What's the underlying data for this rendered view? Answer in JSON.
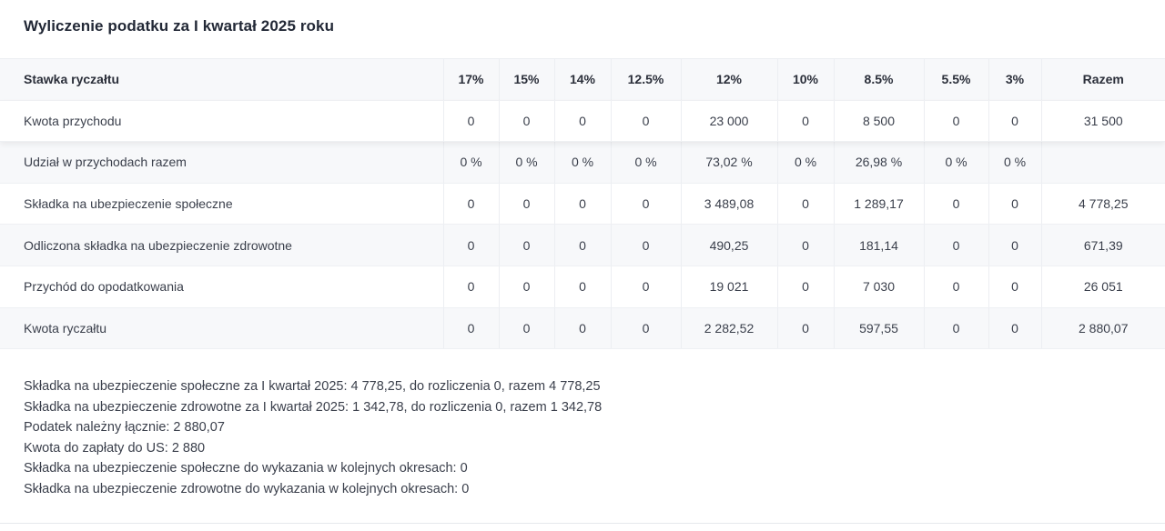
{
  "title": "Wyliczenie podatku za I kwartał 2025 roku",
  "table": {
    "headers": [
      "Stawka ryczałtu",
      "17%",
      "15%",
      "14%",
      "12.5%",
      "12%",
      "10%",
      "8.5%",
      "5.5%",
      "3%",
      "Razem"
    ],
    "rows": [
      {
        "label": "Kwota przychodu",
        "cells": [
          "0",
          "0",
          "0",
          "0",
          "23 000",
          "0",
          "8 500",
          "0",
          "0",
          "31 500"
        ]
      },
      {
        "label": "Udział w przychodach razem",
        "cells": [
          "0 %",
          "0 %",
          "0 %",
          "0 %",
          "73,02 %",
          "0 %",
          "26,98 %",
          "0 %",
          "0 %",
          ""
        ]
      },
      {
        "label": "Składka na ubezpieczenie społeczne",
        "cells": [
          "0",
          "0",
          "0",
          "0",
          "3 489,08",
          "0",
          "1 289,17",
          "0",
          "0",
          "4 778,25"
        ]
      },
      {
        "label": "Odliczona składka na ubezpieczenie zdrowotne",
        "cells": [
          "0",
          "0",
          "0",
          "0",
          "490,25",
          "0",
          "181,14",
          "0",
          "0",
          "671,39"
        ]
      },
      {
        "label": "Przychód do opodatkowania",
        "cells": [
          "0",
          "0",
          "0",
          "0",
          "19 021",
          "0",
          "7 030",
          "0",
          "0",
          "26 051"
        ]
      },
      {
        "label": "Kwota ryczałtu",
        "cells": [
          "0",
          "0",
          "0",
          "0",
          "2 282,52",
          "0",
          "597,55",
          "0",
          "0",
          "2 880,07"
        ]
      }
    ]
  },
  "summary": [
    "Składka na ubezpieczenie społeczne za I kwartał 2025: 4 778,25, do rozliczenia 0, razem 4 778,25",
    "Składka na ubezpieczenie zdrowotne za I kwartał 2025: 1 342,78, do rozliczenia 0, razem 1 342,78",
    "Podatek należny łącznie: 2 880,07",
    "Kwota do zapłaty do US: 2 880",
    "Składka na ubezpieczenie społeczne do wykazania w kolejnych okresach: 0",
    "Składka na ubezpieczenie zdrowotne do wykazania w kolejnych okresach: 0"
  ]
}
